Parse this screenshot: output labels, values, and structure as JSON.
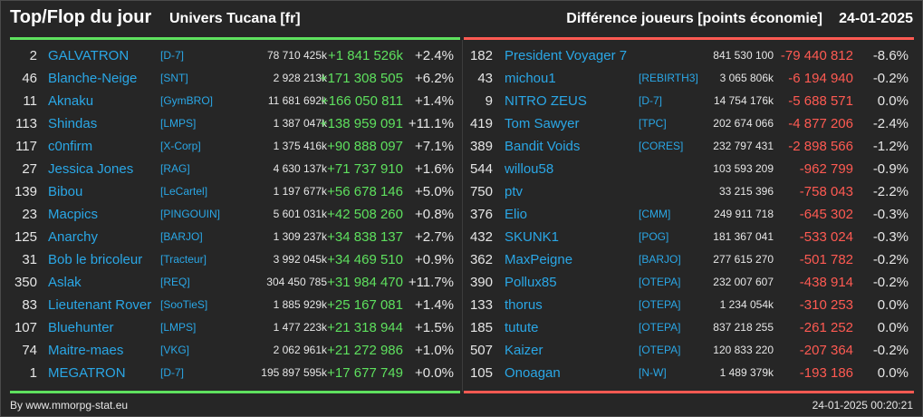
{
  "header": {
    "title": "Top/Flop du jour",
    "server": "Univers Tucana [fr]",
    "metric": "Différence joueurs [points économie]",
    "date": "24-01-2025"
  },
  "colors": {
    "background": "#262626",
    "top_accent": "#5ee05e",
    "flop_accent": "#ff5a52",
    "link": "#2aa7e6",
    "text": "#e6e6e6"
  },
  "top": [
    {
      "rank": "2",
      "name": "GALVATRON",
      "alliance": "[D-7]",
      "points": "78 710 425k",
      "diff": "+1 841 526k",
      "pct": "+2.4%"
    },
    {
      "rank": "46",
      "name": "Blanche-Neige",
      "alliance": "[SNT]",
      "points": "2 928 213k",
      "diff": "+171 308 505",
      "pct": "+6.2%"
    },
    {
      "rank": "11",
      "name": "Aknaku",
      "alliance": "[GymBRO]",
      "points": "11 681 692k",
      "diff": "+166 050 811",
      "pct": "+1.4%"
    },
    {
      "rank": "113",
      "name": "Shindas",
      "alliance": "[LMPS]",
      "points": "1 387 047k",
      "diff": "+138 959 091",
      "pct": "+11.1%"
    },
    {
      "rank": "117",
      "name": "c0nfirm",
      "alliance": "[X-Corp]",
      "points": "1 375 416k",
      "diff": "+90 888 097",
      "pct": "+7.1%"
    },
    {
      "rank": "27",
      "name": "Jessica Jones",
      "alliance": "[RAG]",
      "points": "4 630 137k",
      "diff": "+71 737 910",
      "pct": "+1.6%"
    },
    {
      "rank": "139",
      "name": "Bibou",
      "alliance": "[LeCartel]",
      "points": "1 197 677k",
      "diff": "+56 678 146",
      "pct": "+5.0%"
    },
    {
      "rank": "23",
      "name": "Macpics",
      "alliance": "[PINGOUIN]",
      "points": "5 601 031k",
      "diff": "+42 508 260",
      "pct": "+0.8%"
    },
    {
      "rank": "125",
      "name": "Anarchy",
      "alliance": "[BARJO]",
      "points": "1 309 237k",
      "diff": "+34 838 137",
      "pct": "+2.7%"
    },
    {
      "rank": "31",
      "name": "Bob le bricoleur",
      "alliance": "[Tracteur]",
      "points": "3 992 045k",
      "diff": "+34 469 510",
      "pct": "+0.9%"
    },
    {
      "rank": "350",
      "name": "Aslak",
      "alliance": "[REQ]",
      "points": "304 450 785",
      "diff": "+31 984 470",
      "pct": "+11.7%"
    },
    {
      "rank": "83",
      "name": "Lieutenant Rover",
      "alliance": "[SooTieS]",
      "points": "1 885 929k",
      "diff": "+25 167 081",
      "pct": "+1.4%"
    },
    {
      "rank": "107",
      "name": "Bluehunter",
      "alliance": "[LMPS]",
      "points": "1 477 223k",
      "diff": "+21 318 944",
      "pct": "+1.5%"
    },
    {
      "rank": "74",
      "name": "Maitre-maes",
      "alliance": "[VKG]",
      "points": "2 062 961k",
      "diff": "+21 272 986",
      "pct": "+1.0%"
    },
    {
      "rank": "1",
      "name": "MEGATRON",
      "alliance": "[D-7]",
      "points": "195 897 595k",
      "diff": "+17 677 749",
      "pct": "+0.0%"
    }
  ],
  "flop": [
    {
      "rank": "182",
      "name": "President Voyager 7",
      "alliance": "",
      "points": "841 530 100",
      "diff": "-79 440 812",
      "pct": "-8.6%"
    },
    {
      "rank": "43",
      "name": "michou1",
      "alliance": "[REBIRTH3]",
      "points": "3 065 806k",
      "diff": "-6 194 940",
      "pct": "-0.2%"
    },
    {
      "rank": "9",
      "name": "NITRO ZEUS",
      "alliance": "[D-7]",
      "points": "14 754 176k",
      "diff": "-5 688 571",
      "pct": "0.0%"
    },
    {
      "rank": "419",
      "name": "Tom Sawyer",
      "alliance": "[TPC]",
      "points": "202 674 066",
      "diff": "-4 877 206",
      "pct": "-2.4%"
    },
    {
      "rank": "389",
      "name": "Bandit Voids",
      "alliance": "[CORES]",
      "points": "232 797 431",
      "diff": "-2 898 566",
      "pct": "-1.2%"
    },
    {
      "rank": "544",
      "name": "willou58",
      "alliance": "",
      "points": "103 593 209",
      "diff": "-962 799",
      "pct": "-0.9%"
    },
    {
      "rank": "750",
      "name": "ptv",
      "alliance": "",
      "points": "33 215 396",
      "diff": "-758 043",
      "pct": "-2.2%"
    },
    {
      "rank": "376",
      "name": "Elio",
      "alliance": "[CMM]",
      "points": "249 911 718",
      "diff": "-645 302",
      "pct": "-0.3%"
    },
    {
      "rank": "432",
      "name": "SKUNK1",
      "alliance": "[POG]",
      "points": "181 367 041",
      "diff": "-533 024",
      "pct": "-0.3%"
    },
    {
      "rank": "362",
      "name": "MaxPeigne",
      "alliance": "[BARJO]",
      "points": "277 615 270",
      "diff": "-501 782",
      "pct": "-0.2%"
    },
    {
      "rank": "390",
      "name": "Pollux85",
      "alliance": "[OTEPA]",
      "points": "232 007 607",
      "diff": "-438 914",
      "pct": "-0.2%"
    },
    {
      "rank": "133",
      "name": "thorus",
      "alliance": "[OTEPA]",
      "points": "1 234 054k",
      "diff": "-310 253",
      "pct": "0.0%"
    },
    {
      "rank": "185",
      "name": "tutute",
      "alliance": "[OTEPA]",
      "points": "837 218 255",
      "diff": "-261 252",
      "pct": "0.0%"
    },
    {
      "rank": "507",
      "name": "Kaizer",
      "alliance": "[OTEPA]",
      "points": "120 833 220",
      "diff": "-207 364",
      "pct": "-0.2%"
    },
    {
      "rank": "105",
      "name": "Onoagan",
      "alliance": "[N-W]",
      "points": "1 489 379k",
      "diff": "-193 186",
      "pct": "0.0%"
    }
  ],
  "footer": {
    "site": "By www.mmorpg-stat.eu",
    "timestamp": "24-01-2025 00:20:21"
  }
}
